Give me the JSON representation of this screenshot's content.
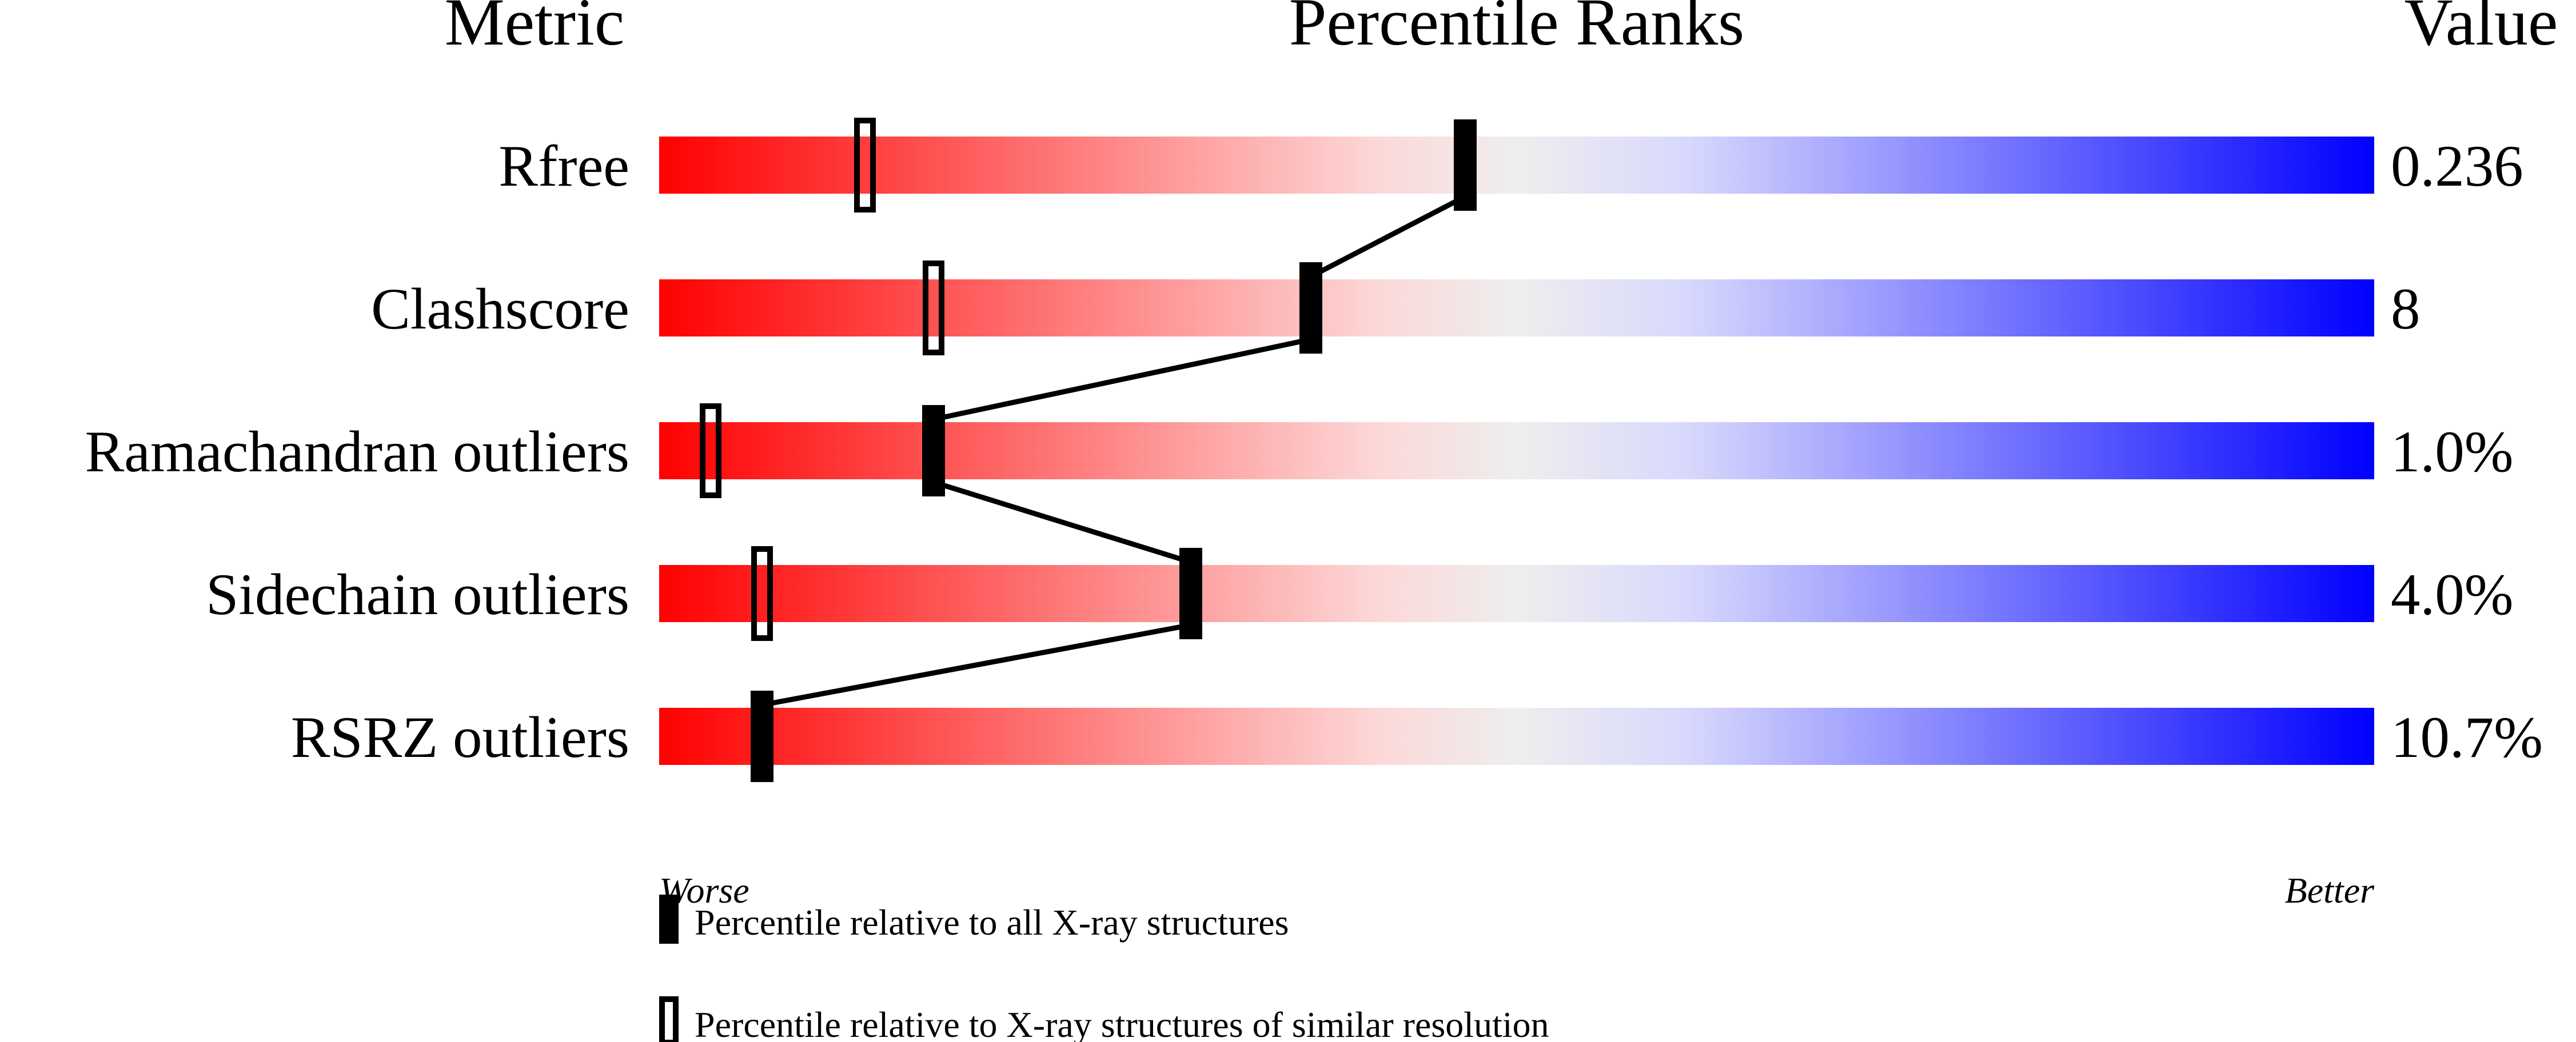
{
  "chart_data": {
    "type": "percentile-bars",
    "headers": {
      "metric": "Metric",
      "ranks": "Percentile Ranks",
      "value": "Value"
    },
    "axis": {
      "left_label": "Worse",
      "right_label": "Better",
      "range": [
        0,
        100
      ]
    },
    "gradient_colors": [
      "#ff0000",
      "#fdd8d8",
      "#eeeeee",
      "#d8d8fd",
      "#0000ff"
    ],
    "connector_color": "#000000",
    "rows": [
      {
        "metric": "Rfree",
        "value": "0.236",
        "percentile_all": 47,
        "percentile_similar": 12
      },
      {
        "metric": "Clashscore",
        "value": "8",
        "percentile_all": 38,
        "percentile_similar": 16
      },
      {
        "metric": "Ramachandran outliers",
        "value": "1.0%",
        "percentile_all": 16,
        "percentile_similar": 3
      },
      {
        "metric": "Sidechain outliers",
        "value": "4.0%",
        "percentile_all": 31,
        "percentile_similar": 6
      },
      {
        "metric": "RSRZ outliers",
        "value": "10.7%",
        "percentile_all": 6,
        "percentile_similar": null
      }
    ],
    "legend": {
      "filled": "Percentile relative to all X-ray structures",
      "open": "Percentile relative to X-ray structures of similar resolution"
    }
  }
}
